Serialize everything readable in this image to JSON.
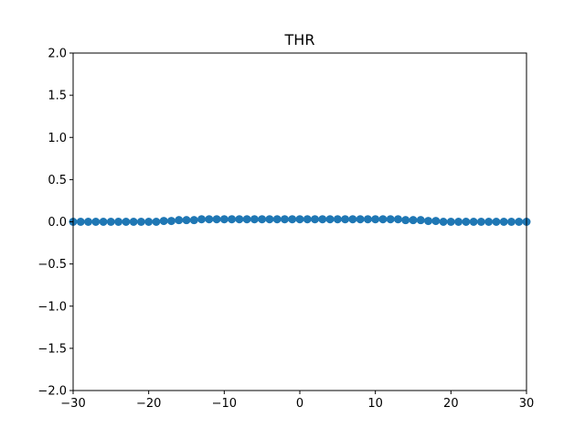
{
  "chart_data": {
    "type": "scatter",
    "title": "THR",
    "xlabel": "",
    "ylabel": "",
    "xlim": [
      -30,
      30
    ],
    "ylim": [
      -2.0,
      2.0
    ],
    "x_ticks": [
      "−30",
      "−20",
      "−10",
      "0",
      "10",
      "20",
      "30"
    ],
    "x_tick_values": [
      -30,
      -20,
      -10,
      0,
      10,
      20,
      30
    ],
    "y_ticks": [
      "−2.0",
      "−1.5",
      "−1.0",
      "−0.5",
      "0.0",
      "0.5",
      "1.0",
      "1.5",
      "2.0"
    ],
    "y_tick_values": [
      -2.0,
      -1.5,
      -1.0,
      -0.5,
      0.0,
      0.5,
      1.0,
      1.5,
      2.0
    ],
    "grid": false,
    "marker_color": "#1f77b4",
    "series": [
      {
        "x": [
          -30,
          -29,
          -28,
          -27,
          -26,
          -25,
          -24,
          -23,
          -22,
          -21,
          -20,
          -19,
          -18,
          -17,
          -16,
          -15,
          -14,
          -13,
          -12,
          -11,
          -10,
          -9,
          -8,
          -7,
          -6,
          -5,
          -4,
          -3,
          -2,
          -1,
          0,
          1,
          2,
          3,
          4,
          5,
          6,
          7,
          8,
          9,
          10,
          11,
          12,
          13,
          14,
          15,
          16,
          17,
          18,
          19,
          20,
          21,
          22,
          23,
          24,
          25,
          26,
          27,
          28,
          29,
          30
        ],
        "y": [
          0.0,
          0.0,
          0.0,
          0.0,
          0.0,
          0.0,
          0.0,
          0.0,
          0.0,
          0.0,
          0.0,
          0.0,
          0.01,
          0.01,
          0.02,
          0.02,
          0.02,
          0.03,
          0.03,
          0.03,
          0.03,
          0.03,
          0.03,
          0.03,
          0.03,
          0.03,
          0.03,
          0.03,
          0.03,
          0.03,
          0.03,
          0.03,
          0.03,
          0.03,
          0.03,
          0.03,
          0.03,
          0.03,
          0.03,
          0.03,
          0.03,
          0.03,
          0.03,
          0.03,
          0.02,
          0.02,
          0.02,
          0.01,
          0.01,
          0.0,
          0.0,
          0.0,
          0.0,
          0.0,
          0.0,
          0.0,
          0.0,
          0.0,
          0.0,
          0.0,
          0.0
        ]
      }
    ]
  }
}
